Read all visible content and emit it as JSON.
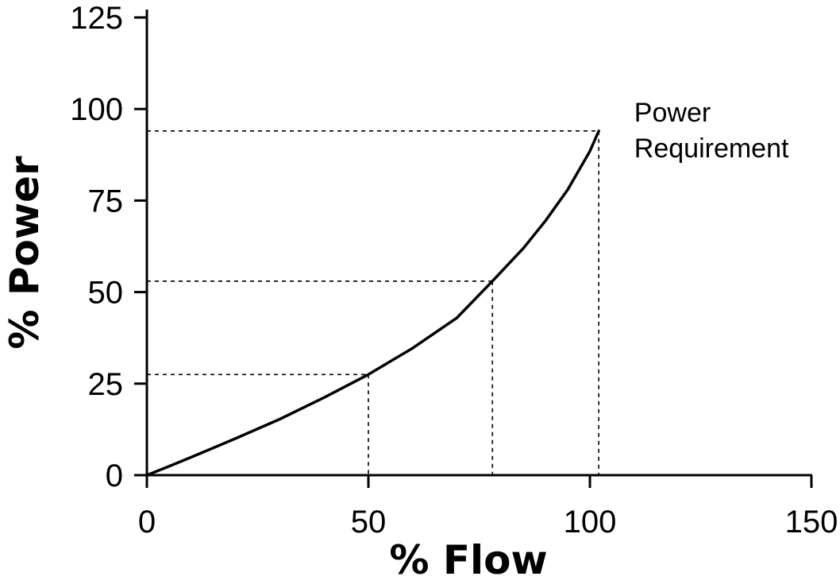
{
  "chart_data": {
    "type": "line",
    "xlabel": "% Flow",
    "ylabel": "% Power",
    "xlim": [
      0,
      150
    ],
    "ylim": [
      0,
      125
    ],
    "xticks": [
      0,
      50,
      100,
      150
    ],
    "yticks": [
      0,
      25,
      50,
      75,
      100,
      125
    ],
    "grid": false,
    "colors": {
      "line": "#000000",
      "axis": "#000000",
      "guide": "#000000"
    },
    "series": [
      {
        "name": "",
        "x": [
          0,
          5,
          10,
          20,
          30,
          40,
          50,
          60,
          70,
          78,
          85,
          90,
          95,
          100,
          102
        ],
        "y": [
          0,
          2.4,
          4.9,
          10,
          15.3,
          21.2,
          27.5,
          34.7,
          43,
          53,
          62,
          69.5,
          78,
          88.5,
          94
        ]
      }
    ],
    "reference_points": [
      {
        "x": 50,
        "y": 27.5
      },
      {
        "x": 78,
        "y": 53
      },
      {
        "x": 102,
        "y": 94
      }
    ],
    "annotation": {
      "lines": [
        "Power",
        "Requirement"
      ],
      "x": 110,
      "y": 94
    }
  }
}
